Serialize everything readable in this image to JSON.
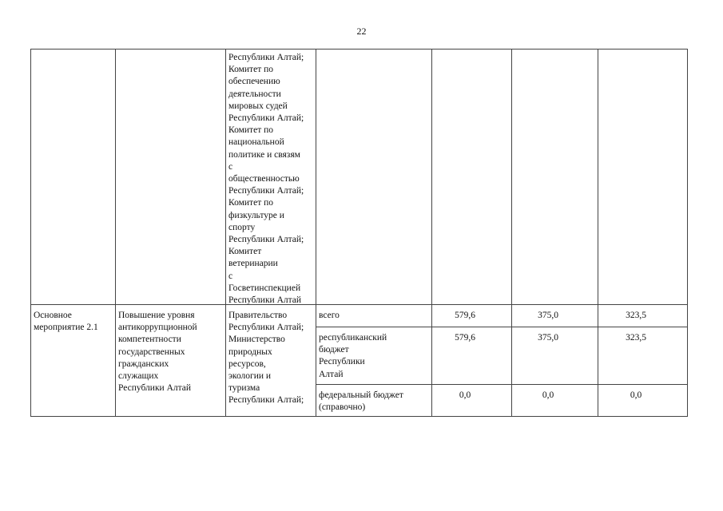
{
  "page_number": "22",
  "row1": {
    "col1": "",
    "col2": "",
    "col3": "Республики Алтай;\nКомитет по\nобеспечению\nдеятельности\nмировых судей\nРеспублики Алтай;\nКомитет по\nнациональной\nполитике и связям\nс\nобщественностью\nРеспублики Алтай;\nКомитет по\nфизкультуре и\nспорту\nРеспублики Алтай;\nКомитет\nветеринарии\nс\nГосветинспекцией\nРеспублики Алтай",
    "col4": "",
    "col5": "",
    "col6": "",
    "col7": ""
  },
  "row2": {
    "name": "Основное\nмероприятие 2.1",
    "title": "Повышение уровня\nантикоррупционной\nкомпетентности\nгосударственных\nгражданских\nслужащих\nРеспублики Алтай",
    "executors": "Правительство\nРеспублики Алтай;\nМинистерство\nприродных\nресурсов,\nэкологии и\nтуризма\nРеспублики Алтай;",
    "sources": [
      {
        "label": "всего",
        "values": [
          "579,6",
          "375,0",
          "323,5"
        ]
      },
      {
        "label": "республиканский\nбюджет\nРеспублики\nАлтай",
        "values": [
          "579,6",
          "375,0",
          "323,5"
        ]
      },
      {
        "label": "федеральный бюджет\n(справочно)",
        "values": [
          "0,0",
          "0,0",
          "0,0"
        ]
      }
    ]
  }
}
